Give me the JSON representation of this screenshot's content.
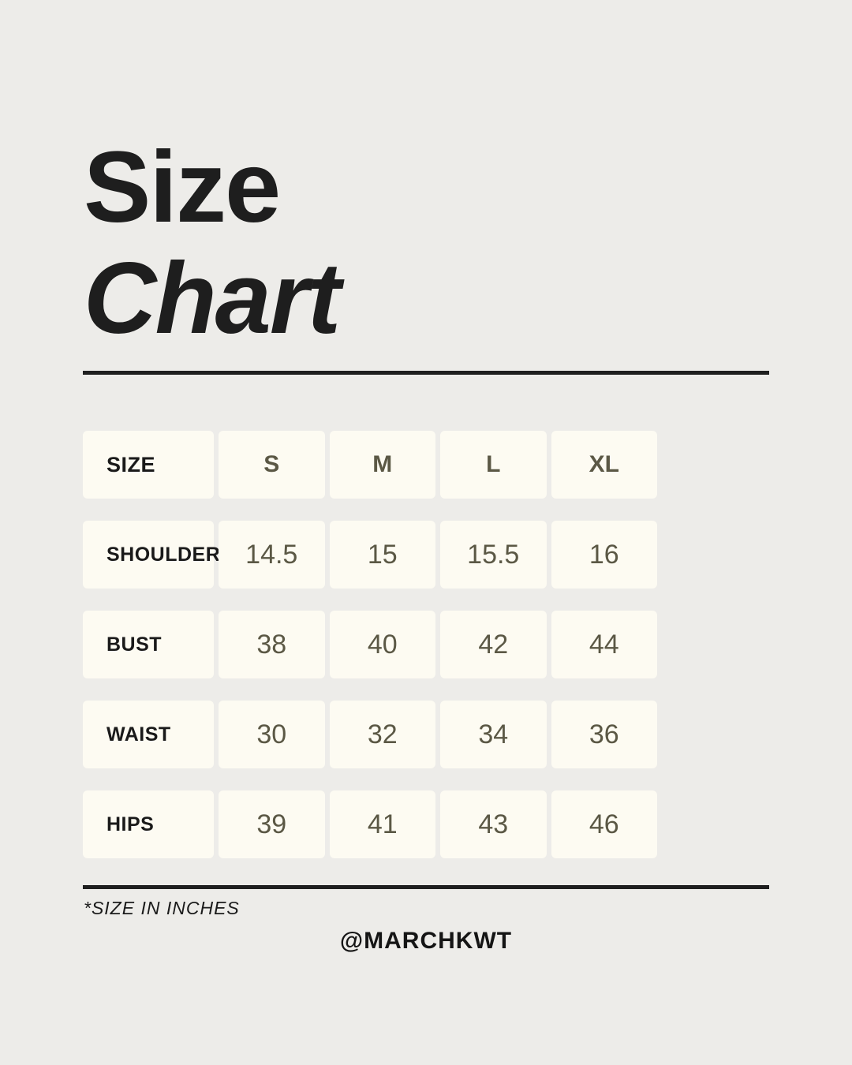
{
  "header": {
    "title_line1": "Size",
    "title_line2": "Chart"
  },
  "footer": {
    "note": "*SIZE IN INCHES",
    "handle": "@MARCHKWT"
  },
  "colors": {
    "background": "#EDECE9",
    "cell_background": "#FDFBF2",
    "label_text": "#1A1A1A",
    "value_text": "#5B5845",
    "rule": "#1F1F1F"
  },
  "chart_data": {
    "type": "table",
    "title": "Size Chart",
    "unit_note": "*SIZE IN INCHES",
    "columns": [
      "SIZE",
      "S",
      "M",
      "L",
      "XL"
    ],
    "rows": [
      {
        "label": "SHOULDER",
        "values": [
          "14.5",
          "15",
          "15.5",
          "16"
        ]
      },
      {
        "label": "BUST",
        "values": [
          "38",
          "40",
          "42",
          "44"
        ]
      },
      {
        "label": "WAIST",
        "values": [
          "30",
          "32",
          "34",
          "36"
        ]
      },
      {
        "label": "HIPS",
        "values": [
          "39",
          "41",
          "43",
          "46"
        ]
      }
    ]
  }
}
